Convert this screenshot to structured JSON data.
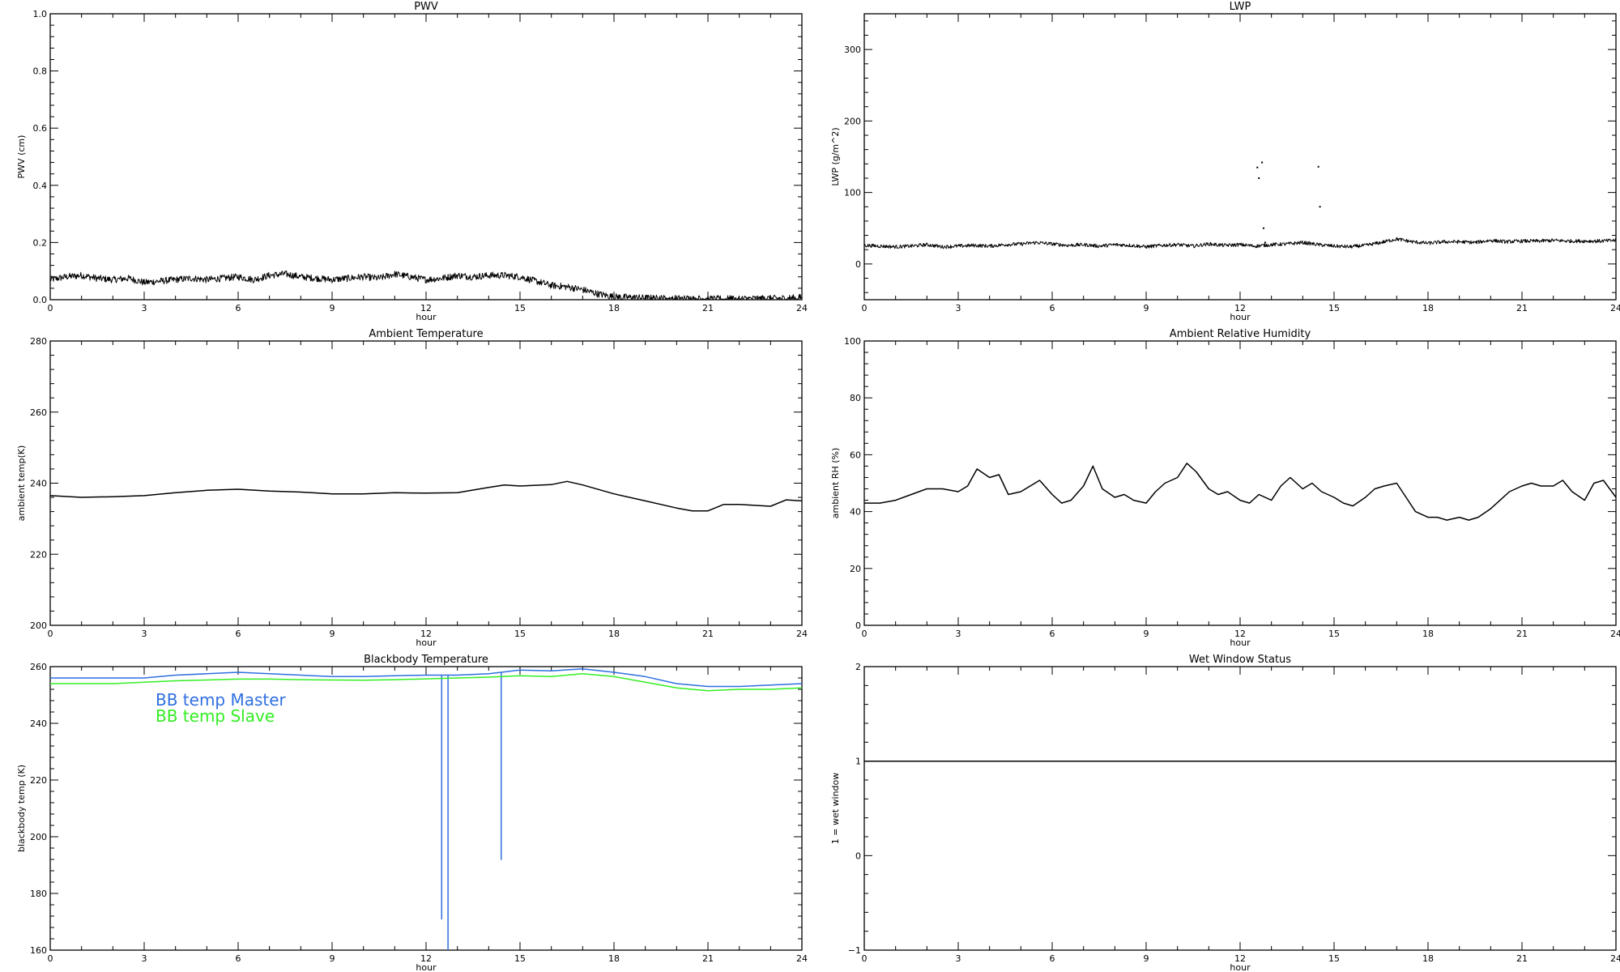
{
  "colors": {
    "master": "#2f6fe0",
    "slave": "#33ee22",
    "black": "#000000"
  },
  "chart_data": [
    {
      "type": "line",
      "title": "PWV",
      "xlabel": "hour",
      "ylabel": "PWV (cm)",
      "xlim": [
        0,
        24
      ],
      "ylim": [
        0.0,
        1.0
      ],
      "xticks": [
        0,
        3,
        6,
        9,
        12,
        15,
        18,
        21,
        24
      ],
      "yticks": [
        0.0,
        0.2,
        0.4,
        0.6,
        0.8,
        1.0
      ],
      "ytick_labels": [
        "0.0",
        "0.2",
        "0.4",
        "0.6",
        "0.8",
        "1.0"
      ],
      "grid": false,
      "series": [
        {
          "color": "#000000",
          "style": "noisy",
          "noise": 0.012,
          "x": [
            0,
            0.5,
            1,
            1.5,
            2,
            2.5,
            3,
            3.5,
            4,
            4.5,
            5,
            5.5,
            6,
            6.5,
            7,
            7.5,
            8,
            8.5,
            9,
            9.5,
            10,
            10.5,
            11,
            11.5,
            12,
            12.5,
            13,
            13.5,
            14,
            14.5,
            15,
            15.5,
            16,
            16.5,
            17,
            17.5,
            18,
            18.5,
            19,
            19.5,
            20,
            20.5,
            21,
            21.5,
            22,
            22.5,
            23,
            23.5,
            24
          ],
          "y": [
            0.07,
            0.08,
            0.085,
            0.075,
            0.07,
            0.075,
            0.06,
            0.065,
            0.07,
            0.075,
            0.07,
            0.075,
            0.08,
            0.07,
            0.085,
            0.09,
            0.08,
            0.075,
            0.07,
            0.075,
            0.08,
            0.075,
            0.09,
            0.08,
            0.07,
            0.075,
            0.085,
            0.08,
            0.085,
            0.085,
            0.08,
            0.065,
            0.05,
            0.045,
            0.035,
            0.02,
            0.01,
            0.008,
            0.006,
            0.005,
            0.004,
            0.004,
            0.003,
            0.003,
            0.003,
            0.004,
            0.004,
            0.005,
            0.008
          ]
        }
      ]
    },
    {
      "type": "line",
      "title": "LWP",
      "xlabel": "hour",
      "ylabel": "LWP (g/m^2)",
      "xlim": [
        0,
        24
      ],
      "ylim": [
        -50,
        350
      ],
      "xticks": [
        0,
        3,
        6,
        9,
        12,
        15,
        18,
        21,
        24
      ],
      "yticks": [
        0,
        100,
        200,
        300
      ],
      "ytick_labels": [
        "0",
        "100",
        "200",
        "300"
      ],
      "grid": false,
      "series": [
        {
          "color": "#000000",
          "style": "noisy",
          "noise": 2.5,
          "x": [
            0,
            0.5,
            1,
            1.5,
            2,
            2.5,
            3,
            3.5,
            4,
            4.5,
            5,
            5.5,
            6,
            6.5,
            7,
            7.5,
            8,
            8.5,
            9,
            9.5,
            10,
            10.5,
            11,
            11.5,
            12,
            12.5,
            13,
            13.5,
            14,
            14.5,
            15,
            15.5,
            16,
            16.5,
            17,
            17.5,
            18,
            18.5,
            19,
            19.5,
            20,
            20.5,
            21,
            21.5,
            22,
            22.5,
            23,
            23.5,
            24
          ],
          "y": [
            26,
            25,
            24,
            25,
            27,
            24,
            25,
            26,
            25,
            27,
            28,
            30,
            28,
            26,
            27,
            25,
            27,
            26,
            24,
            26,
            27,
            25,
            28,
            26,
            27,
            25,
            27,
            28,
            30,
            27,
            25,
            24,
            26,
            30,
            35,
            31,
            29,
            31,
            31,
            30,
            33,
            31,
            32,
            32,
            33,
            32,
            32,
            32,
            33
          ]
        },
        {
          "color": "#000000",
          "style": "points",
          "x": [
            12.55,
            12.6,
            12.7,
            12.75,
            14.5,
            14.55,
            12.8
          ],
          "y": [
            135,
            120,
            142,
            50,
            136,
            80,
            30
          ]
        }
      ]
    },
    {
      "type": "line",
      "title": "Ambient Temperature",
      "xlabel": "hour",
      "ylabel": "ambient temp(K)",
      "xlim": [
        0,
        24
      ],
      "ylim": [
        200,
        280
      ],
      "xticks": [
        0,
        3,
        6,
        9,
        12,
        15,
        18,
        21,
        24
      ],
      "yticks": [
        200,
        220,
        240,
        260,
        280
      ],
      "ytick_labels": [
        "200",
        "220",
        "240",
        "260",
        "280"
      ],
      "grid": false,
      "series": [
        {
          "color": "#000000",
          "style": "line",
          "x": [
            0,
            1,
            2,
            3,
            4,
            5,
            6,
            7,
            8,
            9,
            10,
            11,
            12,
            13,
            14,
            14.5,
            15,
            16,
            16.5,
            17,
            18,
            19,
            20,
            20.5,
            21,
            21.5,
            22,
            23,
            23.5,
            24
          ],
          "y": [
            236.5,
            236,
            236.2,
            236.5,
            237.3,
            238.0,
            238.3,
            237.8,
            237.5,
            237.0,
            237.0,
            237.3,
            237.2,
            237.3,
            238.8,
            239.5,
            239.2,
            239.6,
            240.5,
            239.5,
            237.0,
            235.0,
            233.0,
            232.2,
            232.2,
            234.0,
            234.0,
            233.5,
            235.3,
            235.0
          ]
        }
      ]
    },
    {
      "type": "line",
      "title": "Ambient Relative Humidity",
      "xlabel": "hour",
      "ylabel": "ambient RH (%)",
      "xlim": [
        0,
        24
      ],
      "ylim": [
        0,
        100
      ],
      "xticks": [
        0,
        3,
        6,
        9,
        12,
        15,
        18,
        21,
        24
      ],
      "yticks": [
        0,
        20,
        40,
        60,
        80,
        100
      ],
      "ytick_labels": [
        "0",
        "20",
        "40",
        "60",
        "80",
        "100"
      ],
      "grid": false,
      "series": [
        {
          "color": "#000000",
          "style": "line",
          "x": [
            0,
            0.5,
            1,
            1.5,
            2,
            2.5,
            3,
            3.3,
            3.6,
            4,
            4.3,
            4.6,
            5,
            5.3,
            5.6,
            6,
            6.3,
            6.6,
            7,
            7.3,
            7.6,
            8,
            8.3,
            8.6,
            9,
            9.3,
            9.6,
            10,
            10.3,
            10.6,
            11,
            11.3,
            11.6,
            12,
            12.3,
            12.6,
            13,
            13.3,
            13.6,
            14,
            14.3,
            14.6,
            15,
            15.3,
            15.6,
            16,
            16.3,
            16.6,
            17,
            17.3,
            17.6,
            18,
            18.3,
            18.6,
            19,
            19.3,
            19.6,
            20,
            20.3,
            20.6,
            21,
            21.3,
            21.6,
            22,
            22.3,
            22.6,
            23,
            23.3,
            23.6,
            24
          ],
          "y": [
            43,
            43,
            44,
            46,
            48,
            48,
            47,
            49,
            55,
            52,
            53,
            46,
            47,
            49,
            51,
            46,
            43,
            44,
            49,
            56,
            48,
            45,
            46,
            44,
            43,
            47,
            50,
            52,
            57,
            54,
            48,
            46,
            47,
            44,
            43,
            46,
            44,
            49,
            52,
            48,
            50,
            47,
            45,
            43,
            42,
            45,
            48,
            49,
            50,
            45,
            40,
            38,
            38,
            37,
            38,
            37,
            38,
            41,
            44,
            47,
            49,
            50,
            49,
            49,
            51,
            47,
            44,
            50,
            51,
            45
          ]
        }
      ]
    },
    {
      "type": "line",
      "title": "Blackbody Temperature",
      "xlabel": "hour",
      "ylabel": "blackbody temp (K)",
      "xlim": [
        0,
        24
      ],
      "ylim": [
        160,
        260
      ],
      "xticks": [
        0,
        3,
        6,
        9,
        12,
        15,
        18,
        21,
        24
      ],
      "yticks": [
        160,
        180,
        200,
        220,
        240,
        260
      ],
      "ytick_labels": [
        "160",
        "180",
        "200",
        "220",
        "240",
        "260"
      ],
      "grid": false,
      "legend": "top-left",
      "series": [
        {
          "name": "BB temp Master",
          "color": "#2f6fe0",
          "style": "line",
          "x": [
            0,
            1,
            2,
            3,
            4,
            5,
            6,
            7,
            8,
            9,
            10,
            11,
            12,
            12.5,
            12.5,
            12.5,
            12.7,
            12.7,
            12.7,
            13,
            14,
            14.4,
            14.4,
            14.4,
            15,
            16,
            17,
            18,
            19,
            20,
            21,
            22,
            23,
            24
          ],
          "y": [
            256,
            256,
            256,
            256,
            257,
            257.5,
            258,
            257.5,
            257,
            256.5,
            256.5,
            256.8,
            257,
            257,
            171,
            257,
            257,
            160,
            257,
            257,
            257.5,
            258,
            192,
            258,
            258.8,
            258.5,
            259.2,
            258,
            256.5,
            254,
            253,
            253,
            253.5,
            254
          ]
        },
        {
          "name": "BB temp Slave",
          "color": "#33ee22",
          "style": "line",
          "x": [
            0,
            1,
            2,
            3,
            4,
            5,
            6,
            7,
            8,
            9,
            10,
            11,
            12,
            13,
            14,
            15,
            16,
            17,
            18,
            19,
            20,
            21,
            22,
            23,
            24
          ],
          "y": [
            254,
            254,
            254,
            254.5,
            255,
            255.3,
            255.6,
            255.6,
            255.4,
            255.3,
            255.2,
            255.4,
            255.7,
            256,
            256.3,
            256.8,
            256.5,
            257.5,
            256.5,
            254.5,
            252.5,
            251.5,
            252,
            252,
            252.5
          ]
        }
      ]
    },
    {
      "type": "line",
      "title": "Wet Window Status",
      "xlabel": "hour",
      "ylabel": "1 = wet window",
      "xlim": [
        0,
        24
      ],
      "ylim": [
        -1,
        2
      ],
      "xticks": [
        0,
        3,
        6,
        9,
        12,
        15,
        18,
        21,
        24
      ],
      "yticks": [
        -1,
        0,
        1,
        2
      ],
      "ytick_labels": [
        "−1",
        "0",
        "1",
        "2"
      ],
      "grid": false,
      "series": [
        {
          "color": "#000000",
          "style": "line",
          "x": [
            0,
            24
          ],
          "y": [
            1,
            1
          ]
        }
      ]
    }
  ]
}
